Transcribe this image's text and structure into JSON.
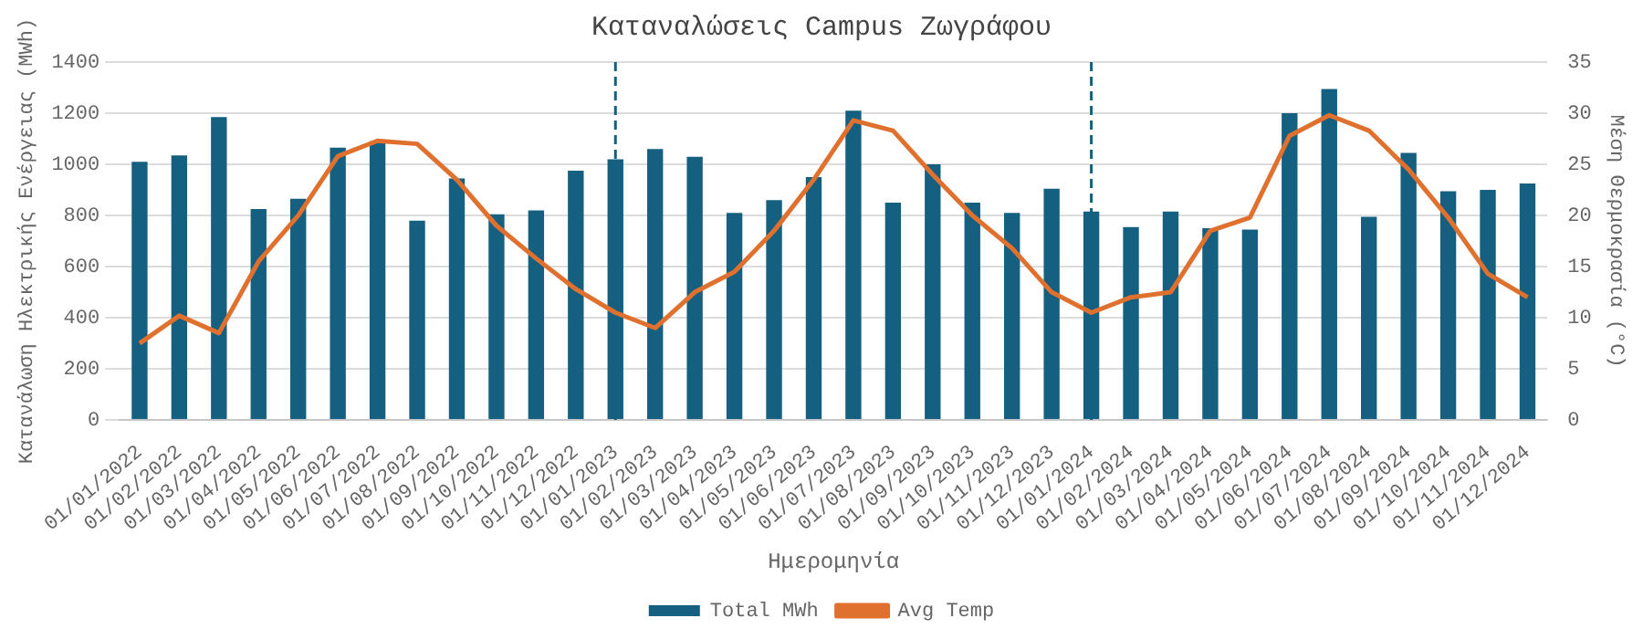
{
  "chart_data": {
    "type": "bar",
    "title": "Καταναλώσεις Campus Ζωγράφου",
    "xlabel": "Ημερομηνία",
    "ylabel": "Κατανάλωση Ηλεκτρικής Ενέργειας (MWh)",
    "y2label": "Μέση Θερμοκρασία (°C)",
    "categories": [
      "01/01/2022",
      "01/02/2022",
      "01/03/2022",
      "01/04/2022",
      "01/05/2022",
      "01/06/2022",
      "01/07/2022",
      "01/08/2022",
      "01/09/2022",
      "01/10/2022",
      "01/11/2022",
      "01/12/2022",
      "01/01/2023",
      "01/02/2023",
      "01/03/2023",
      "01/04/2023",
      "01/05/2023",
      "01/06/2023",
      "01/07/2023",
      "01/08/2023",
      "01/09/2023",
      "01/10/2023",
      "01/11/2023",
      "01/12/2023",
      "01/01/2024",
      "01/02/2024",
      "01/03/2024",
      "01/04/2024",
      "01/05/2024",
      "01/06/2024",
      "01/07/2024",
      "01/08/2024",
      "01/09/2024",
      "01/10/2024",
      "01/11/2024",
      "01/12/2024"
    ],
    "series": [
      {
        "name": "Total MWh",
        "color": "#155f80",
        "values": [
          1010,
          1035,
          1185,
          825,
          865,
          1065,
          1090,
          780,
          945,
          805,
          820,
          975,
          1020,
          1060,
          1030,
          810,
          860,
          950,
          1210,
          850,
          1000,
          850,
          810,
          905,
          815,
          755,
          815,
          750,
          745,
          1200,
          1295,
          795,
          1045,
          895,
          900,
          925
        ]
      },
      {
        "name": "Avg Temp",
        "type": "line",
        "axis": "y2",
        "color": "#e0702e",
        "values": [
          7.5,
          10.2,
          8.5,
          15.5,
          20,
          25.8,
          27.3,
          27,
          23.5,
          19,
          15.8,
          12.8,
          10.5,
          9,
          12.5,
          14.5,
          18.5,
          23.5,
          29.3,
          28.3,
          24,
          20,
          16.8,
          12.5,
          10.5,
          12,
          12.5,
          18.5,
          19.8,
          27.8,
          29.8,
          28.3,
          24.5,
          19.8,
          14.3,
          12
        ]
      }
    ],
    "ylim": [
      0,
      1400
    ],
    "yticks": [
      0,
      200,
      400,
      600,
      800,
      1000,
      1200,
      1400
    ],
    "y2lim": [
      0,
      35
    ],
    "y2ticks": [
      0,
      5,
      10,
      15,
      20,
      25,
      30,
      35
    ],
    "ref_lines": [
      {
        "axis": "x",
        "value": "01/01/2023",
        "color": "#155f80",
        "line_style": "dashed"
      },
      {
        "axis": "x",
        "value": "01/01/2024",
        "color": "#155f80",
        "line_style": "dashed"
      }
    ],
    "grid": "y",
    "legend": "bottom",
    "marker": "none",
    "line_style": "solid"
  }
}
